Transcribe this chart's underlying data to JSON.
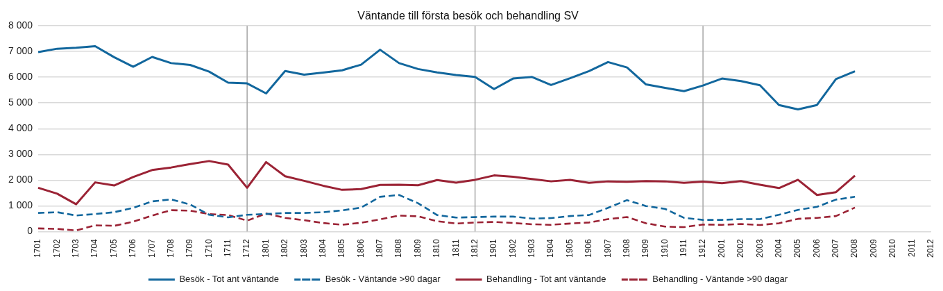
{
  "chart_data": {
    "type": "line",
    "title": "Väntande till första besök och behandling SV",
    "categories": [
      "1701",
      "1702",
      "1703",
      "1704",
      "1705",
      "1706",
      "1707",
      "1708",
      "1709",
      "1710",
      "1711",
      "1712",
      "1801",
      "1802",
      "1803",
      "1804",
      "1805",
      "1806",
      "1807",
      "1808",
      "1809",
      "1810",
      "1811",
      "1812",
      "1901",
      "1902",
      "1903",
      "1904",
      "1905",
      "1906",
      "1907",
      "1908",
      "1909",
      "1910",
      "1911",
      "1912",
      "2001",
      "2002",
      "2003",
      "2004",
      "2005",
      "2006",
      "2007",
      "2008",
      "2009",
      "2010",
      "2011",
      "2012"
    ],
    "series": [
      {
        "name": "Besök - Tot ant väntande",
        "color": "#12679d",
        "line_style": "solid",
        "values": [
          6980,
          7110,
          7150,
          7210,
          6780,
          6410,
          6790,
          6550,
          6480,
          6220,
          5790,
          5760,
          5370,
          6240,
          6100,
          6180,
          6270,
          6490,
          7070,
          6550,
          6320,
          6190,
          6090,
          6010,
          5540,
          5950,
          6010,
          5700,
          5960,
          6240,
          6590,
          6380,
          5720,
          5590,
          5460,
          5680,
          5950,
          5850,
          5690,
          4920,
          4750,
          4920,
          5930,
          6230,
          null,
          null,
          null,
          null
        ]
      },
      {
        "name": "Besök - Väntande >90 dagar",
        "color": "#12679d",
        "line_style": "dashed",
        "values": [
          720,
          750,
          620,
          680,
          750,
          920,
          1170,
          1250,
          1050,
          650,
          550,
          650,
          680,
          720,
          720,
          750,
          820,
          930,
          1350,
          1420,
          1100,
          640,
          540,
          560,
          580,
          580,
          500,
          520,
          600,
          640,
          920,
          1220,
          990,
          880,
          530,
          450,
          450,
          480,
          480,
          650,
          840,
          960,
          1240,
          1350,
          null,
          null,
          null,
          null
        ]
      },
      {
        "name": "Behandling - Tot ant väntande",
        "color": "#9b2335",
        "line_style": "solid",
        "values": [
          1700,
          1470,
          1060,
          1910,
          1790,
          2120,
          2390,
          2490,
          2620,
          2740,
          2600,
          1700,
          2700,
          2150,
          1970,
          1780,
          1620,
          1650,
          1810,
          1820,
          1800,
          2000,
          1900,
          2010,
          2180,
          2130,
          2040,
          1950,
          2010,
          1890,
          1950,
          1930,
          1960,
          1950,
          1890,
          1940,
          1880,
          1960,
          1820,
          1690,
          2010,
          1420,
          1530,
          2170,
          null,
          null,
          null,
          null
        ]
      },
      {
        "name": "Behandling - Väntande >90 dagar",
        "color": "#9b2335",
        "line_style": "dashed",
        "values": [
          120,
          100,
          40,
          240,
          220,
          380,
          620,
          830,
          810,
          680,
          640,
          420,
          700,
          530,
          440,
          330,
          260,
          340,
          470,
          620,
          590,
          400,
          310,
          350,
          370,
          330,
          280,
          260,
          310,
          350,
          480,
          560,
          320,
          190,
          170,
          270,
          260,
          290,
          250,
          320,
          490,
          530,
          600,
          930,
          null,
          null,
          null,
          null
        ]
      }
    ],
    "ylim": [
      0,
      8000
    ],
    "yticks": [
      {
        "value": 0,
        "label": "0"
      },
      {
        "value": 1000,
        "label": "1 000"
      },
      {
        "value": 2000,
        "label": "2 000"
      },
      {
        "value": 3000,
        "label": "3 000"
      },
      {
        "value": 4000,
        "label": "4 000"
      },
      {
        "value": 5000,
        "label": "5 000"
      },
      {
        "value": 6000,
        "label": "6 000"
      },
      {
        "value": 7000,
        "label": "7 000"
      },
      {
        "value": 8000,
        "label": "8 000"
      }
    ],
    "grid": "y",
    "legend": "bottom",
    "marker": "none",
    "ref_lines": [
      {
        "axis": "x",
        "value": "1712",
        "color": "#a6a6a6"
      },
      {
        "axis": "x",
        "value": "1812",
        "color": "#a6a6a6"
      },
      {
        "axis": "x",
        "value": "1912",
        "color": "#a6a6a6"
      }
    ]
  }
}
